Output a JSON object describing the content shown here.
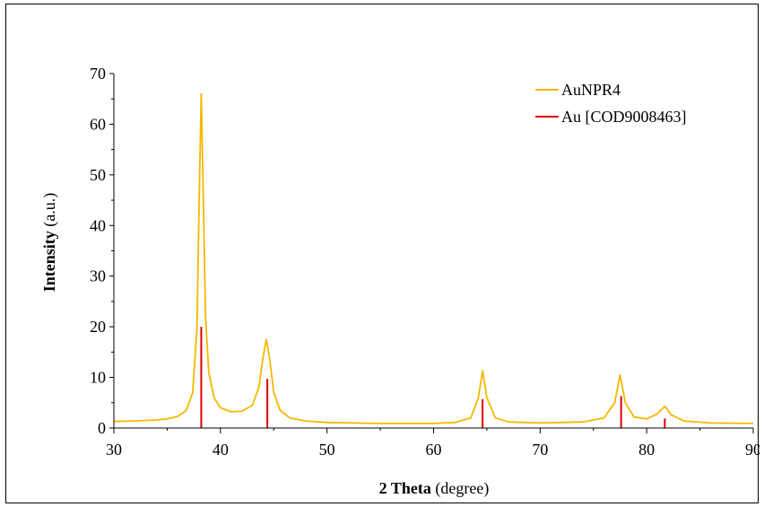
{
  "chart_data": {
    "type": "line",
    "xlabel": {
      "bold": "2 Theta",
      "normal": " (degree)"
    },
    "ylabel": {
      "bold": "Intensity",
      "normal": " (a.u.)"
    },
    "xlim": [
      30,
      90
    ],
    "ylim": [
      0,
      70
    ],
    "x_ticks": [
      30,
      40,
      50,
      60,
      70,
      80,
      90
    ],
    "y_ticks": [
      0,
      10,
      20,
      30,
      40,
      50,
      60,
      70
    ],
    "grid": false,
    "legend_position": "top-right",
    "series": [
      {
        "name": "AuNPR4",
        "kind": "line",
        "color": "#F5B800",
        "points": [
          [
            30,
            1.3
          ],
          [
            32,
            1.4
          ],
          [
            34,
            1.6
          ],
          [
            35,
            1.8
          ],
          [
            36,
            2.3
          ],
          [
            36.8,
            3.5
          ],
          [
            37.4,
            7
          ],
          [
            37.8,
            20
          ],
          [
            38.0,
            45
          ],
          [
            38.2,
            66
          ],
          [
            38.4,
            45
          ],
          [
            38.6,
            22
          ],
          [
            38.9,
            11
          ],
          [
            39.4,
            6
          ],
          [
            40,
            4
          ],
          [
            41,
            3.2
          ],
          [
            42,
            3.3
          ],
          [
            43,
            4.5
          ],
          [
            43.6,
            8
          ],
          [
            44.0,
            14
          ],
          [
            44.3,
            17.5
          ],
          [
            44.6,
            14
          ],
          [
            45.0,
            7
          ],
          [
            45.6,
            3.5
          ],
          [
            46.5,
            2
          ],
          [
            48,
            1.4
          ],
          [
            50,
            1.1
          ],
          [
            55,
            0.9
          ],
          [
            60,
            0.9
          ],
          [
            62,
            1.1
          ],
          [
            63.5,
            2
          ],
          [
            64.2,
            6
          ],
          [
            64.6,
            11.3
          ],
          [
            65.0,
            6
          ],
          [
            65.8,
            2
          ],
          [
            67,
            1.2
          ],
          [
            70,
            1.0
          ],
          [
            74,
            1.2
          ],
          [
            76,
            2.0
          ],
          [
            77.0,
            5
          ],
          [
            77.5,
            10.5
          ],
          [
            78.0,
            5
          ],
          [
            78.8,
            2.2
          ],
          [
            80,
            1.8
          ],
          [
            81.0,
            2.8
          ],
          [
            81.7,
            4.3
          ],
          [
            82.3,
            2.6
          ],
          [
            83.5,
            1.4
          ],
          [
            86,
            1.0
          ],
          [
            90,
            0.9
          ]
        ]
      },
      {
        "name": "Au [COD9008463]",
        "kind": "stick",
        "color": "#E00000",
        "points": [
          [
            38.2,
            20
          ],
          [
            44.4,
            9.7
          ],
          [
            64.6,
            5.7
          ],
          [
            77.6,
            6.3
          ],
          [
            81.7,
            1.9
          ]
        ]
      }
    ]
  }
}
